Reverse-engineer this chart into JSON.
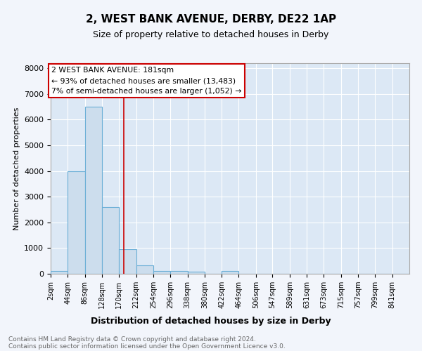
{
  "title": "2, WEST BANK AVENUE, DERBY, DE22 1AP",
  "subtitle": "Size of property relative to detached houses in Derby",
  "xlabel": "Distribution of detached houses by size in Derby",
  "ylabel": "Number of detached properties",
  "bin_labels": [
    "2sqm",
    "44sqm",
    "86sqm",
    "128sqm",
    "170sqm",
    "212sqm",
    "254sqm",
    "296sqm",
    "338sqm",
    "380sqm",
    "422sqm",
    "464sqm",
    "506sqm",
    "547sqm",
    "589sqm",
    "631sqm",
    "673sqm",
    "715sqm",
    "757sqm",
    "799sqm",
    "841sqm"
  ],
  "bin_edges": [
    2,
    44,
    86,
    128,
    170,
    212,
    254,
    296,
    338,
    380,
    422,
    464,
    506,
    547,
    589,
    631,
    673,
    715,
    757,
    799,
    841,
    883
  ],
  "bar_heights": [
    100,
    4000,
    6500,
    2600,
    950,
    320,
    120,
    100,
    70,
    0,
    100,
    0,
    0,
    0,
    0,
    0,
    0,
    0,
    0,
    0,
    0
  ],
  "bar_color": "#ccdded",
  "bar_edge_color": "#6aaed6",
  "bar_edge_width": 0.8,
  "redline_x": 181,
  "annotation_title": "2 WEST BANK AVENUE: 181sqm",
  "annotation_line1": "← 93% of detached houses are smaller (13,483)",
  "annotation_line2": "7% of semi-detached houses are larger (1,052) →",
  "annotation_box_facecolor": "#ffffff",
  "annotation_box_edgecolor": "#cc0000",
  "redline_color": "#cc0000",
  "ylim": [
    0,
    8200
  ],
  "yticks": [
    0,
    1000,
    2000,
    3000,
    4000,
    5000,
    6000,
    7000,
    8000
  ],
  "plot_bg_color": "#dce8f5",
  "fig_bg_color": "#f2f5fb",
  "grid_color": "#ffffff",
  "footer_line1": "Contains HM Land Registry data © Crown copyright and database right 2024.",
  "footer_line2": "Contains public sector information licensed under the Open Government Licence v3.0."
}
